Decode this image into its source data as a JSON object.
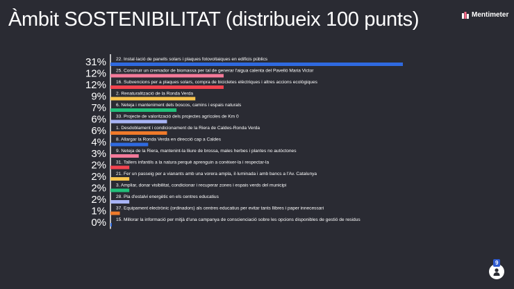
{
  "title": "Àmbit SOSTENIBILITAT (distribueix 100 punts)",
  "brand": {
    "name": "Mentimeter",
    "icon": "mentimeter-logo-icon"
  },
  "participants": {
    "count": "9",
    "icon": "person-icon"
  },
  "chart_data": {
    "type": "bar",
    "orientation": "horizontal",
    "xlim": [
      0,
      31
    ],
    "grid": false,
    "categories": [
      "22. Instal·lació de panells solars i plaques fotovoltaiques en edificis públics",
      "25. Construir un cremador de biomassa per tal de generar l'aigua calenta del Pavelló Maria Victor",
      "16. Subvencions per a plaques solars, compra de bicicletes elèctriques i altres accions ecològiques",
      "2. Renaturalització de la Ronda Verda",
      "6. Neteja i manteniment dels boscos, camins i espais naturals",
      "33. Projecte de valorització dels projectes agrícoles de Km 0",
      "1. Desdoblament i condicionament de la Riera de Caldes-Ronda Verda",
      "8. Allargar la Ronda Verda en direcció cap a Caldes",
      "9. Neteja de la Riera, mantenint-la lliure de brossa, males herbes i plantes no autòctones",
      "31. Tallers infantils a la natura perquè aprenguin a conèixer-la i respectar-la",
      "21. Fer un passeig per a vianants amb una vorera ampla, il·luminada i amb bancs a l'Av. Catalunya",
      "3. Ampliar, donar visibilitat, condicionar i recuperar zones i espais verds del municipi",
      "28. Pla d'estalvi energètic en els centres educatius",
      "37. Equipament electrònic (ordinadors) als centres educatius per evitar tants llibres i paper innecessari",
      "15. Millorar la informació per mitjà d'una campanya de conscienciació sobre les opcions disponibles de gestió de residus"
    ],
    "values": [
      31,
      12,
      12,
      9,
      7,
      6,
      6,
      4,
      3,
      2,
      2,
      2,
      2,
      1,
      0
    ],
    "value_labels": [
      "31%",
      "12%",
      "12%",
      "9%",
      "7%",
      "6%",
      "6%",
      "4%",
      "3%",
      "2%",
      "2%",
      "2%",
      "2%",
      "1%",
      "0%"
    ],
    "colors": [
      "#2f6ae0",
      "#f47a9a",
      "#f2434f",
      "#f8c44c",
      "#22c07a",
      "#a8b4f5",
      "#ef7a2a",
      "#2f6ae0",
      "#f47a9a",
      "#f2434f",
      "#f8c44c",
      "#22c07a",
      "#a8b4f5",
      "#ef7a2a",
      "#2f6ae0"
    ]
  }
}
